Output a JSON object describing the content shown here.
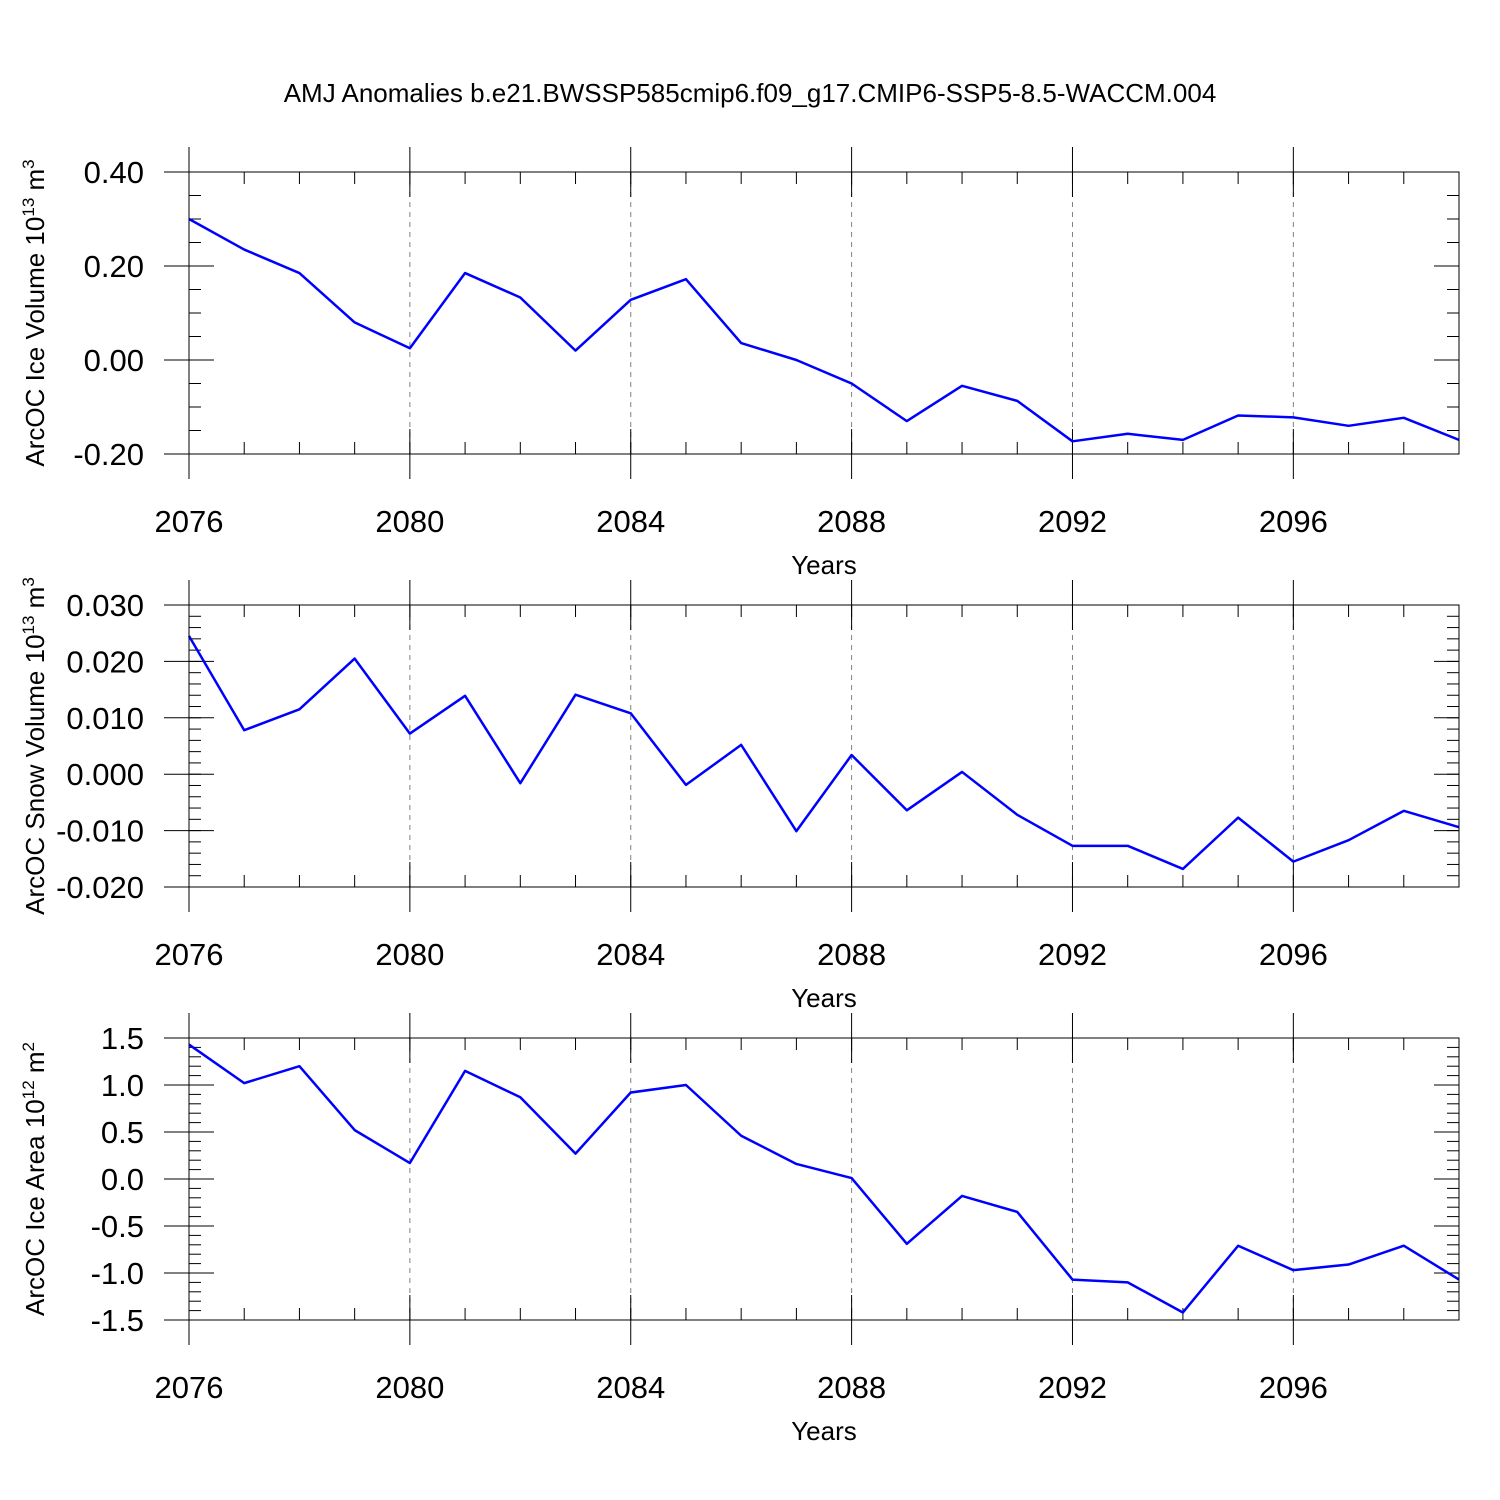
{
  "title": "AMJ Anomalies b.e21.BWSSP585cmip6.f09_g17.CMIP6-SSP5-8.5-WACCM.004",
  "colors": {
    "line": "#0000ff",
    "axis": "#000000",
    "grid": "#808080"
  },
  "chart_data": [
    {
      "type": "line",
      "title": "",
      "xlabel": "Years",
      "ylabel": "ArcOC Ice Volume 10",
      "ylabel_exp": "13",
      "ylabel_unit": " m",
      "ylabel_unit_exp": "3",
      "x": [
        2076,
        2077,
        2078,
        2079,
        2080,
        2081,
        2082,
        2083,
        2084,
        2085,
        2086,
        2087,
        2088,
        2089,
        2090,
        2091,
        2092,
        2093,
        2094,
        2095,
        2096,
        2097,
        2098,
        2099
      ],
      "series": [
        {
          "name": "ArcOC Ice Volume",
          "values": [
            0.3,
            0.235,
            0.185,
            0.08,
            0.025,
            0.185,
            0.133,
            0.02,
            0.128,
            0.172,
            0.036,
            0.0,
            -0.05,
            -0.13,
            -0.055,
            -0.087,
            -0.173,
            -0.157,
            -0.17,
            -0.118,
            -0.122,
            -0.14,
            -0.123,
            -0.17
          ]
        }
      ],
      "xlim": [
        2076,
        2099
      ],
      "ylim": [
        -0.2,
        0.4
      ],
      "xticks": [
        2076,
        2080,
        2084,
        2088,
        2092,
        2096
      ],
      "xtick_labels": [
        "2076",
        "2080",
        "2084",
        "2088",
        "2092",
        "2096"
      ],
      "yticks": [
        -0.2,
        0.0,
        0.2,
        0.4
      ],
      "ytick_labels": [
        "-0.20",
        "0.00",
        "0.20",
        "0.40"
      ],
      "yminor_step": 0.05,
      "grid": "vertical dashed at major x ticks"
    },
    {
      "type": "line",
      "title": "",
      "xlabel": "Years",
      "ylabel": "ArcOC Snow Volume 10",
      "ylabel_exp": "13",
      "ylabel_unit": " m",
      "ylabel_unit_exp": "3",
      "x": [
        2076,
        2077,
        2078,
        2079,
        2080,
        2081,
        2082,
        2083,
        2084,
        2085,
        2086,
        2087,
        2088,
        2089,
        2090,
        2091,
        2092,
        2093,
        2094,
        2095,
        2096,
        2097,
        2098,
        2099
      ],
      "series": [
        {
          "name": "ArcOC Snow Volume",
          "values": [
            0.0245,
            0.0078,
            0.0115,
            0.0205,
            0.0072,
            0.0139,
            -0.0016,
            0.0141,
            0.0108,
            -0.0019,
            0.0052,
            -0.0101,
            0.0034,
            -0.0064,
            0.0004,
            -0.0072,
            -0.0127,
            -0.0127,
            -0.0168,
            -0.0077,
            -0.0155,
            -0.0117,
            -0.0065,
            -0.0094
          ]
        }
      ],
      "xlim": [
        2076,
        2099
      ],
      "ylim": [
        -0.02,
        0.03
      ],
      "xticks": [
        2076,
        2080,
        2084,
        2088,
        2092,
        2096
      ],
      "xtick_labels": [
        "2076",
        "2080",
        "2084",
        "2088",
        "2092",
        "2096"
      ],
      "yticks": [
        -0.02,
        -0.01,
        0.0,
        0.01,
        0.02,
        0.03
      ],
      "ytick_labels": [
        "-0.020",
        "-0.010",
        "0.000",
        "0.010",
        "0.020",
        "0.030"
      ],
      "yminor_step": 0.002,
      "grid": "vertical dashed at major x ticks"
    },
    {
      "type": "line",
      "title": "",
      "xlabel": "Years",
      "ylabel": "ArcOC Ice Area 10",
      "ylabel_exp": "12",
      "ylabel_unit": " m",
      "ylabel_unit_exp": "2",
      "x": [
        2076,
        2077,
        2078,
        2079,
        2080,
        2081,
        2082,
        2083,
        2084,
        2085,
        2086,
        2087,
        2088,
        2089,
        2090,
        2091,
        2092,
        2093,
        2094,
        2095,
        2096,
        2097,
        2098,
        2099
      ],
      "series": [
        {
          "name": "ArcOC Ice Area",
          "values": [
            1.43,
            1.02,
            1.2,
            0.52,
            0.17,
            1.15,
            0.87,
            0.27,
            0.92,
            1.0,
            0.46,
            0.16,
            0.01,
            -0.69,
            -0.18,
            -0.35,
            -1.07,
            -1.1,
            -1.42,
            -0.71,
            -0.97,
            -0.91,
            -0.71,
            -1.07
          ]
        }
      ],
      "xlim": [
        2076,
        2099
      ],
      "ylim": [
        -1.5,
        1.5
      ],
      "xticks": [
        2076,
        2080,
        2084,
        2088,
        2092,
        2096
      ],
      "xtick_labels": [
        "2076",
        "2080",
        "2084",
        "2088",
        "2092",
        "2096"
      ],
      "yticks": [
        -1.5,
        -1.0,
        -0.5,
        0.0,
        0.5,
        1.0,
        1.5
      ],
      "ytick_labels": [
        "-1.5",
        "-1.0",
        "-0.5",
        "0.0",
        "0.5",
        "1.0",
        "1.5"
      ],
      "yminor_step": 0.1,
      "grid": "vertical dashed at major x ticks"
    }
  ]
}
